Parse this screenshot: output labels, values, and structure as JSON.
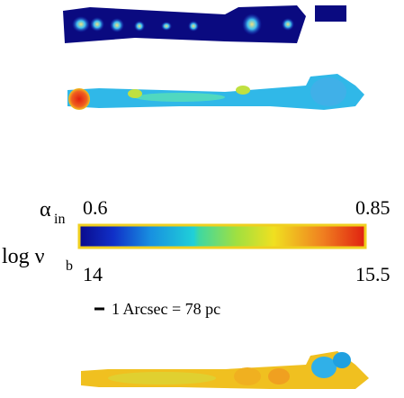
{
  "colorbar": {
    "alpha_symbol": "α",
    "alpha_subscript": "in",
    "alpha_min": 0.6,
    "alpha_max": 0.85,
    "nu_symbol": "log ν",
    "nu_subscript": "b",
    "nu_min": 14,
    "nu_max": 15.5
  },
  "scale_bar": "1 Arcsec = 78 pc"
}
